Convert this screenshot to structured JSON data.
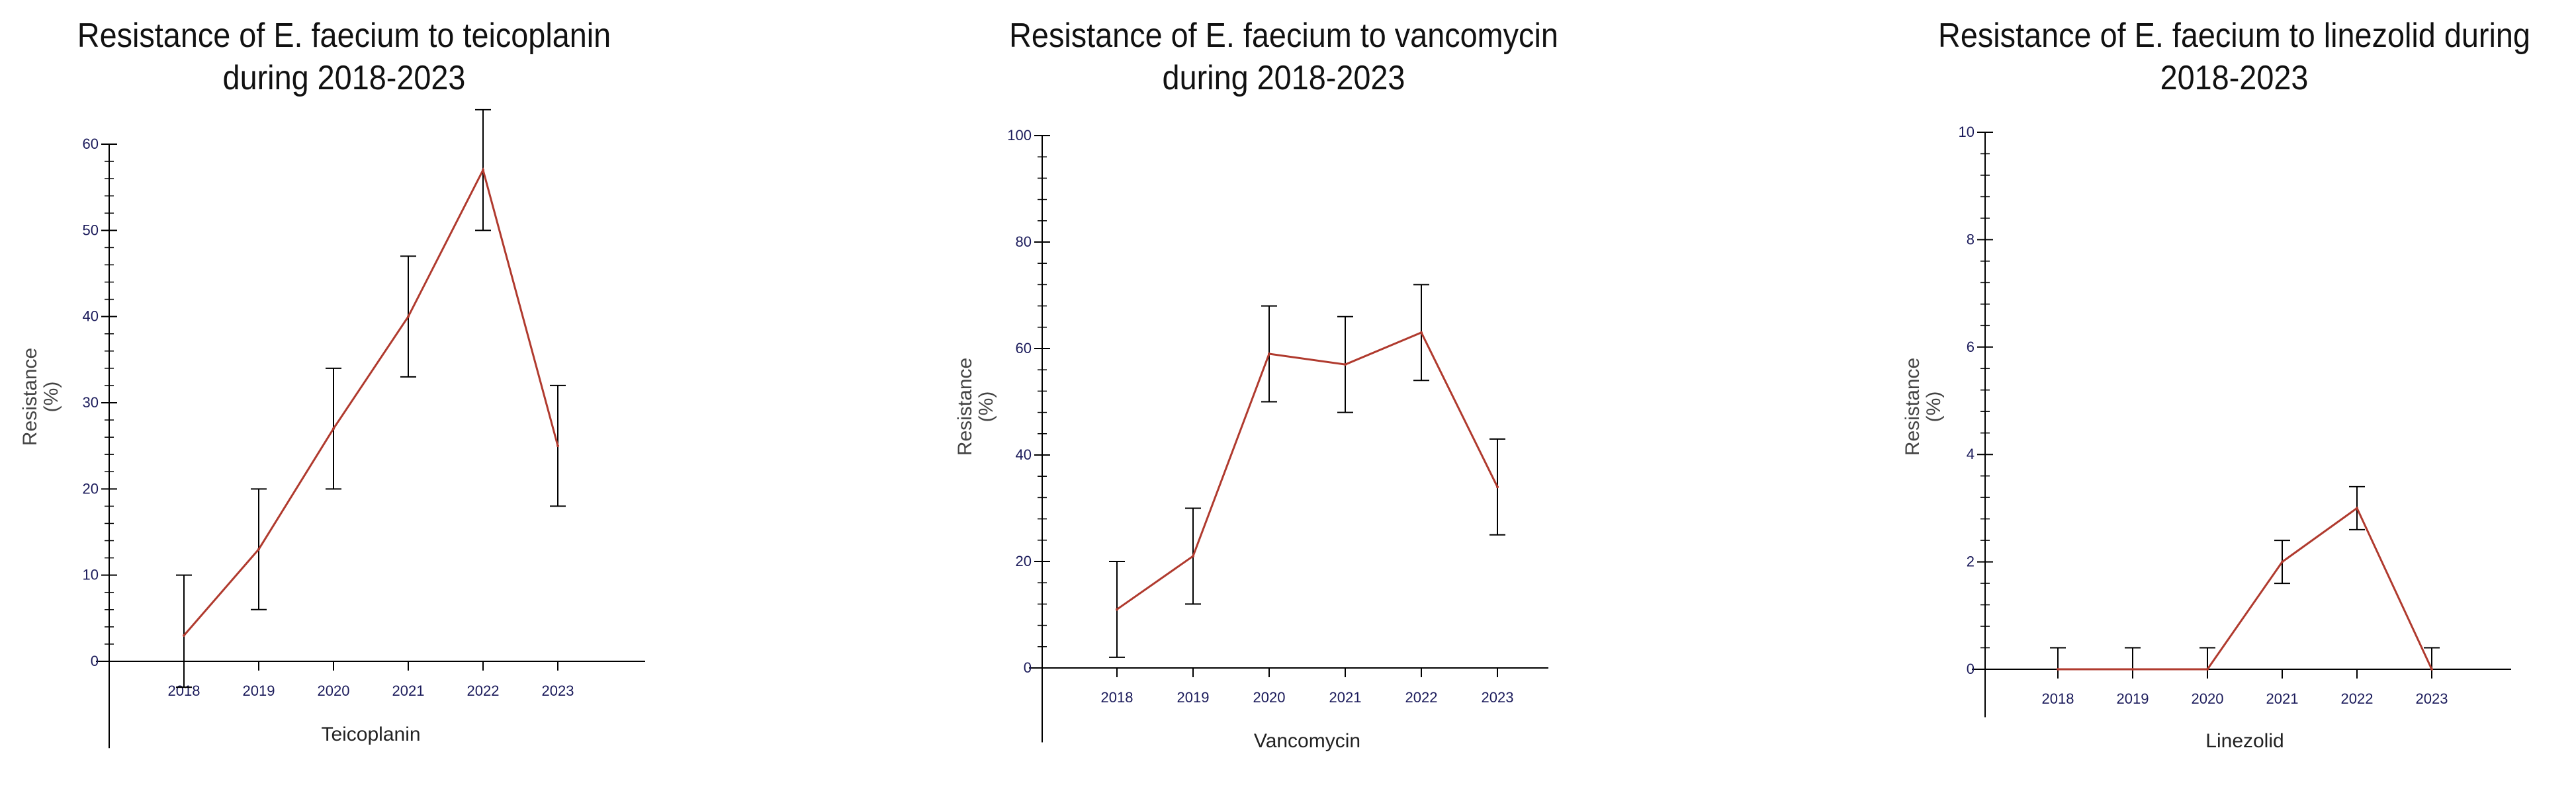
{
  "colors": {
    "line": "#b03a2e",
    "axis": "#000000",
    "error_bar": "#000000",
    "text": "#111111"
  },
  "chart_data": [
    {
      "type": "line",
      "title": "Resistance of E. faecium to teicoplanin\nduring 2018-2023",
      "xlabel": "Teicoplanin",
      "ylabel": "Resistance\n(%)",
      "categories": [
        "2018",
        "2019",
        "2020",
        "2021",
        "2022",
        "2023"
      ],
      "ylim": [
        -7,
        60
      ],
      "yticks": [
        0,
        10,
        20,
        30,
        40,
        50,
        60
      ],
      "series": [
        {
          "values": [
            3,
            13,
            27,
            40,
            57,
            25
          ],
          "error_low": [
            -3,
            6,
            20,
            33,
            50,
            18
          ],
          "error_high": [
            10,
            20,
            34,
            47,
            64,
            32
          ]
        }
      ]
    },
    {
      "type": "line",
      "title": "Resistance of E. faecium to vancomycin\nduring 2018-2023",
      "xlabel": "Vancomycin",
      "ylabel": "Resistance\n(%)",
      "categories": [
        "2018",
        "2019",
        "2020",
        "2021",
        "2022",
        "2023"
      ],
      "ylim": [
        -9,
        100
      ],
      "yticks": [
        0,
        20,
        40,
        60,
        80,
        100
      ],
      "series": [
        {
          "values": [
            11,
            21,
            59,
            57,
            63,
            34
          ],
          "error_low": [
            2,
            12,
            50,
            48,
            54,
            25
          ],
          "error_high": [
            20,
            30,
            68,
            66,
            72,
            43
          ]
        }
      ]
    },
    {
      "type": "line",
      "title": "Resistance of E. faecium to linezolid during\n2018-2023",
      "xlabel": "Linezolid",
      "ylabel": "Resistance\n(%)",
      "categories": [
        "2018",
        "2019",
        "2020",
        "2021",
        "2022",
        "2023"
      ],
      "ylim": [
        -0.4,
        10
      ],
      "yticks": [
        0,
        2,
        4,
        6,
        8,
        10
      ],
      "series": [
        {
          "values": [
            0,
            0,
            0,
            2,
            3,
            0
          ],
          "error_low": [
            0,
            0,
            0,
            1.6,
            2.6,
            0
          ],
          "error_high": [
            0.4,
            0.4,
            0.4,
            2.4,
            3.4,
            0.4
          ]
        }
      ]
    }
  ]
}
